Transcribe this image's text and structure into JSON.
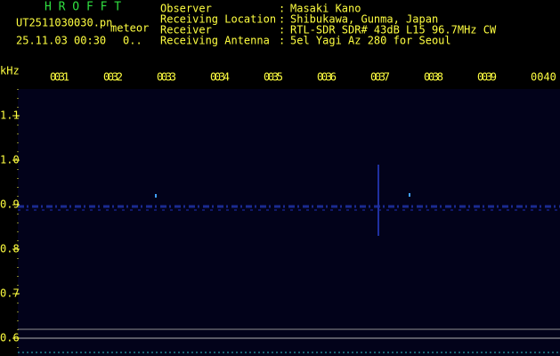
{
  "header": {
    "app": "H R O F F T",
    "file": "UT2511030030.pn",
    "mode": "meteor",
    "datetime": "25.11.03 00:30",
    "status": "0..",
    "fields": [
      {
        "label": "Observer",
        "sep": ":",
        "value": "Masaki Kano"
      },
      {
        "label": "Receiving Location",
        "sep": ":",
        "value": "Shibukawa, Gunma, Japan"
      },
      {
        "label": "Receiver",
        "sep": ":",
        "value": "RTL-SDR SDR# 43dB L15 96.7MHz CW"
      },
      {
        "label": "Receiving Antenna",
        "sep": ":",
        "value": "5el Yagi Az 280 for Seoul"
      }
    ]
  },
  "plot": {
    "unit": "kHz",
    "time_labels": [
      "0031",
      "0032",
      "0033",
      "0034",
      "0035",
      "0036",
      "0037",
      "0038",
      "0039",
      "0040"
    ],
    "freq_labels": [
      "1.1",
      "1.0",
      "0.9",
      "0.8",
      "0.7",
      "0.6"
    ]
  }
}
